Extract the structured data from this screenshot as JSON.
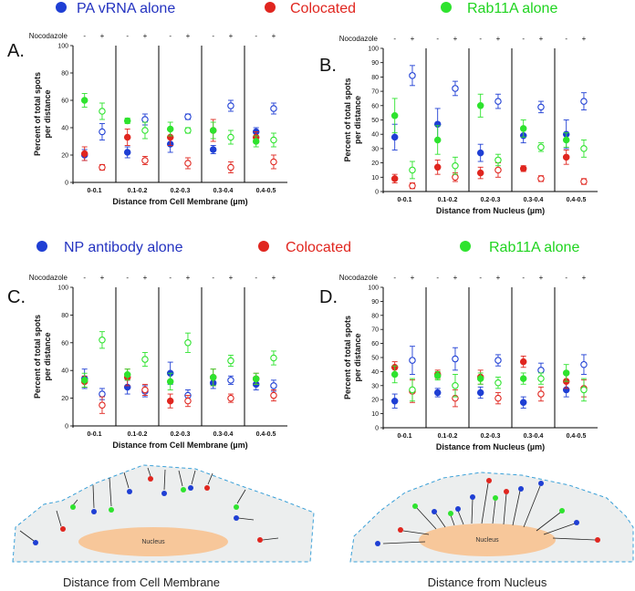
{
  "colors": {
    "blue": "#1f3fd4",
    "red": "#e0261f",
    "green": "#2ee32e",
    "blueLegendText": "#2433c0",
    "redLegendText": "#e0261f",
    "greenLegendText": "#1fd41f",
    "cell": "#eceeee",
    "cellStroke": "#3aa0d8",
    "nucleus": "#f7c79a"
  },
  "legends": {
    "top": {
      "blue": "PA vRNA alone",
      "red": "Colocated",
      "green": "Rab11A alone"
    },
    "bottom": {
      "blue": "NP antibody alone",
      "red": "Colocated",
      "green": "Rab11A alone"
    }
  },
  "common": {
    "nocodazole_label": "Nocodazole",
    "minus": "-",
    "plus": "+",
    "nucleus_label": "Nucleus"
  },
  "captions": {
    "left": "Distance from Cell Membrane",
    "right": "Distance from Nucleus"
  },
  "chart_data": [
    {
      "panel": "A.",
      "type": "scatter",
      "ylabel": "Percent of total spots per distance",
      "xlabel": "Distance from Cell Membrane (µm)",
      "ylim": [
        0,
        100
      ],
      "yticks": [
        0,
        20,
        40,
        60,
        80,
        100
      ],
      "categories": [
        "0-0.1",
        "0.1-0.2",
        "0.2-0.3",
        "0.3-0.4",
        "0.4-0.5"
      ],
      "series": [
        {
          "name": "PA vRNA alone",
          "color": "blue",
          "minus": [
            20,
            22,
            28,
            24,
            37
          ],
          "plus": [
            37,
            46,
            48,
            56,
            54
          ],
          "err_minus": [
            4,
            4,
            6,
            3,
            3
          ],
          "err_plus": [
            6,
            4,
            2,
            4,
            4
          ]
        },
        {
          "name": "Colocated",
          "color": "red",
          "minus": [
            21,
            33,
            33,
            38,
            33
          ],
          "plus": [
            11,
            16,
            14,
            11,
            15
          ],
          "err_minus": [
            5,
            6,
            6,
            8,
            4
          ],
          "err_plus": [
            2,
            3,
            4,
            4,
            5
          ]
        },
        {
          "name": "Rab11A alone",
          "color": "green",
          "minus": [
            60,
            45,
            39,
            38,
            30
          ],
          "plus": [
            52,
            38,
            38,
            33,
            31
          ],
          "err_minus": [
            5,
            2,
            5,
            6,
            4
          ],
          "err_plus": [
            6,
            6,
            2,
            5,
            5
          ]
        }
      ]
    },
    {
      "panel": "B.",
      "type": "scatter",
      "ylabel": "Percent of total spots per distance",
      "xlabel": "Distance from Nucleus (µm)",
      "ylim": [
        0,
        100
      ],
      "yticks": [
        0,
        10,
        20,
        30,
        40,
        50,
        60,
        70,
        80,
        90,
        100
      ],
      "categories": [
        "0-0.1",
        "0.1-0.2",
        "0.2-0.3",
        "0.3-0.4",
        "0.4-0.5"
      ],
      "series": [
        {
          "name": "PA vRNA alone",
          "color": "blue",
          "minus": [
            38,
            47,
            27,
            39,
            40
          ],
          "plus": [
            81,
            72,
            63,
            59,
            63
          ],
          "err_minus": [
            9,
            11,
            6,
            5,
            10
          ],
          "err_plus": [
            7,
            5,
            5,
            4,
            6
          ]
        },
        {
          "name": "Colocated",
          "color": "red",
          "minus": [
            9,
            17,
            13,
            16,
            24
          ],
          "plus": [
            4,
            10,
            15,
            9,
            7
          ],
          "err_minus": [
            3,
            5,
            4,
            2,
            5
          ],
          "err_plus": [
            2,
            3,
            5,
            2,
            2
          ]
        },
        {
          "name": "Rab11A alone",
          "color": "green",
          "minus": [
            53,
            36,
            60,
            44,
            36
          ],
          "plus": [
            15,
            18,
            22,
            31,
            30
          ],
          "err_minus": [
            12,
            10,
            8,
            6,
            5
          ],
          "err_plus": [
            6,
            6,
            4,
            3,
            6
          ]
        }
      ]
    },
    {
      "panel": "C.",
      "type": "scatter",
      "ylabel": "Percent of total spots per distance",
      "xlabel": "Distance from Cell Membrane (µm)",
      "ylim": [
        0,
        100
      ],
      "yticks": [
        0,
        20,
        40,
        60,
        80,
        100
      ],
      "categories": [
        "0-0.1",
        "0.1-0.2",
        "0.2-0.3",
        "0.3-0.4",
        "0.4-0.5"
      ],
      "series": [
        {
          "name": "NP antibody alone",
          "color": "blue",
          "minus": [
            34,
            28,
            38,
            31,
            30
          ],
          "plus": [
            23,
            25,
            22,
            33,
            29
          ],
          "err_minus": [
            7,
            5,
            8,
            4,
            4
          ],
          "err_plus": [
            4,
            4,
            4,
            3,
            4
          ]
        },
        {
          "name": "Colocated",
          "color": "red",
          "minus": [
            32,
            35,
            18,
            35,
            34
          ],
          "plus": [
            15,
            26,
            18,
            20,
            22
          ],
          "err_minus": [
            4,
            6,
            5,
            6,
            4
          ],
          "err_plus": [
            6,
            4,
            4,
            3,
            4
          ]
        },
        {
          "name": "Rab11A alone",
          "color": "green",
          "minus": [
            33,
            37,
            32,
            35,
            34
          ],
          "plus": [
            62,
            48,
            60,
            47,
            49
          ],
          "err_minus": [
            5,
            4,
            6,
            6,
            4
          ],
          "err_plus": [
            6,
            5,
            7,
            4,
            5
          ]
        }
      ]
    },
    {
      "panel": "D.",
      "type": "scatter",
      "ylabel": "Percent of total spots per distance",
      "xlabel": "Distance from Nucleus (µm)",
      "ylim": [
        0,
        100
      ],
      "yticks": [
        0,
        10,
        20,
        30,
        40,
        50,
        60,
        70,
        80,
        90,
        100
      ],
      "categories": [
        "0-0.1",
        "0.1-0.2",
        "0.2-0.3",
        "0.3-0.4",
        "0.4-0.5"
      ],
      "series": [
        {
          "name": "NP antibody alone",
          "color": "blue",
          "minus": [
            19,
            25,
            25,
            18,
            27
          ],
          "plus": [
            48,
            49,
            48,
            41,
            45
          ],
          "err_minus": [
            5,
            3,
            4,
            4,
            5
          ],
          "err_plus": [
            10,
            8,
            4,
            5,
            7
          ]
        },
        {
          "name": "Colocated",
          "color": "red",
          "minus": [
            43,
            38,
            36,
            47,
            33
          ],
          "plus": [
            26,
            21,
            21,
            24,
            28
          ],
          "err_minus": [
            4,
            3,
            5,
            4,
            5
          ],
          "err_plus": [
            8,
            6,
            4,
            5,
            6
          ]
        },
        {
          "name": "Rab11A alone",
          "color": "green",
          "minus": [
            38,
            37,
            35,
            35,
            39
          ],
          "plus": [
            27,
            30,
            32,
            35,
            27
          ],
          "err_minus": [
            6,
            3,
            4,
            4,
            6
          ],
          "err_plus": [
            8,
            8,
            4,
            4,
            8
          ]
        }
      ]
    }
  ]
}
